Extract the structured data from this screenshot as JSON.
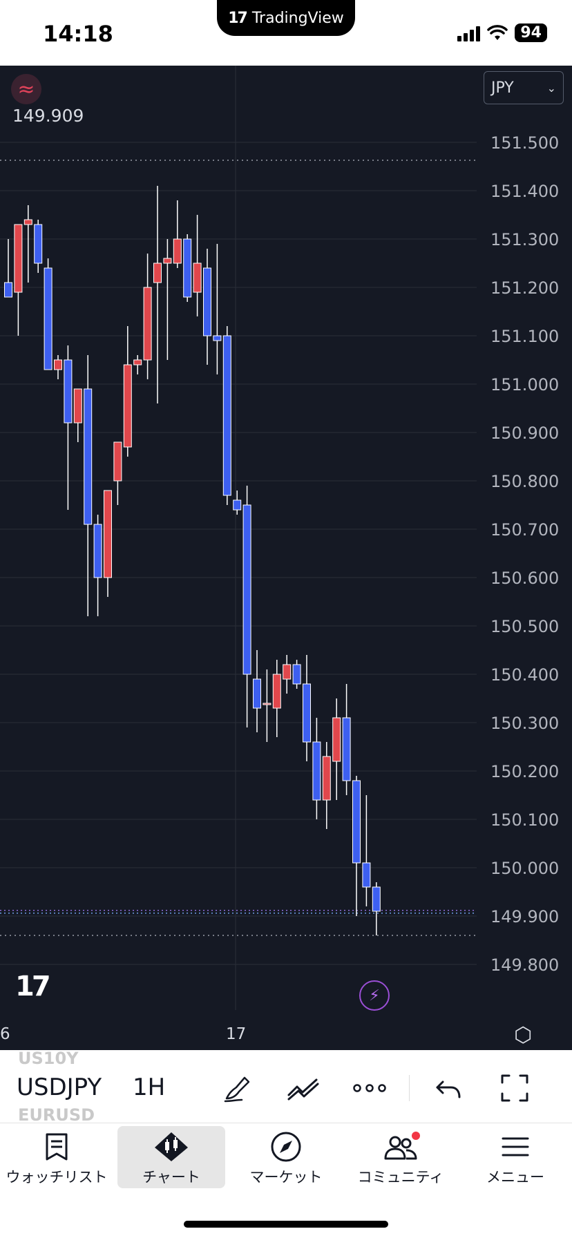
{
  "status": {
    "time": "14:18",
    "battery": "94",
    "island_label": "TradingView"
  },
  "chart": {
    "indicator_value": "149.909",
    "currency": "JPY",
    "price_labels": [
      "151.500",
      "151.400",
      "151.300",
      "151.200",
      "151.100",
      "151.000",
      "150.900",
      "150.800",
      "150.700",
      "150.600",
      "150.500",
      "150.400",
      "150.300",
      "150.200",
      "150.100",
      "150.000",
      "149.900",
      "149.800"
    ],
    "time_labels": [
      {
        "label": "6",
        "pos": "edge"
      },
      {
        "label": "17",
        "pos": "mid"
      }
    ],
    "colors": {
      "up": "#e0474c",
      "down": "#3d5ff0",
      "background": "#151924",
      "grid": "#2a2e39"
    },
    "candles": [
      {
        "o": 151.21,
        "h": 151.3,
        "l": 151.19,
        "c": 151.18
      },
      {
        "o": 151.19,
        "h": 151.33,
        "l": 151.1,
        "c": 151.33
      },
      {
        "o": 151.33,
        "h": 151.37,
        "l": 151.21,
        "c": 151.34
      },
      {
        "o": 151.33,
        "h": 151.34,
        "l": 151.23,
        "c": 151.25
      },
      {
        "o": 151.24,
        "h": 151.26,
        "l": 151.03,
        "c": 151.03
      },
      {
        "o": 151.03,
        "h": 151.06,
        "l": 151.01,
        "c": 151.05
      },
      {
        "o": 151.05,
        "h": 151.08,
        "l": 150.74,
        "c": 150.92
      },
      {
        "o": 150.92,
        "h": 150.99,
        "l": 150.88,
        "c": 150.99
      },
      {
        "o": 150.99,
        "h": 151.06,
        "l": 150.52,
        "c": 150.71
      },
      {
        "o": 150.71,
        "h": 150.73,
        "l": 150.52,
        "c": 150.6
      },
      {
        "o": 150.6,
        "h": 150.78,
        "l": 150.56,
        "c": 150.78
      },
      {
        "o": 150.8,
        "h": 150.88,
        "l": 150.75,
        "c": 150.88
      },
      {
        "o": 150.87,
        "h": 151.12,
        "l": 150.85,
        "c": 151.04
      },
      {
        "o": 151.04,
        "h": 151.06,
        "l": 151.02,
        "c": 151.05
      },
      {
        "o": 151.05,
        "h": 151.27,
        "l": 151.01,
        "c": 151.2
      },
      {
        "o": 151.21,
        "h": 151.41,
        "l": 150.96,
        "c": 151.25
      },
      {
        "o": 151.25,
        "h": 151.3,
        "l": 151.05,
        "c": 151.26
      },
      {
        "o": 151.25,
        "h": 151.38,
        "l": 151.24,
        "c": 151.3
      },
      {
        "o": 151.3,
        "h": 151.31,
        "l": 151.17,
        "c": 151.18
      },
      {
        "o": 151.19,
        "h": 151.35,
        "l": 151.14,
        "c": 151.25
      },
      {
        "o": 151.24,
        "h": 151.28,
        "l": 151.04,
        "c": 151.1
      },
      {
        "o": 151.1,
        "h": 151.29,
        "l": 151.02,
        "c": 151.09
      },
      {
        "o": 151.1,
        "h": 151.12,
        "l": 150.75,
        "c": 150.77
      },
      {
        "o": 150.76,
        "h": 150.78,
        "l": 150.73,
        "c": 150.74
      },
      {
        "o": 150.75,
        "h": 150.79,
        "l": 150.29,
        "c": 150.4
      },
      {
        "o": 150.39,
        "h": 150.45,
        "l": 150.28,
        "c": 150.33
      },
      {
        "o": 150.34,
        "h": 150.41,
        "l": 150.26,
        "c": 150.34
      },
      {
        "o": 150.33,
        "h": 150.43,
        "l": 150.27,
        "c": 150.4
      },
      {
        "o": 150.39,
        "h": 150.44,
        "l": 150.36,
        "c": 150.42
      },
      {
        "o": 150.42,
        "h": 150.43,
        "l": 150.37,
        "c": 150.38
      },
      {
        "o": 150.38,
        "h": 150.44,
        "l": 150.22,
        "c": 150.26
      },
      {
        "o": 150.26,
        "h": 150.31,
        "l": 150.1,
        "c": 150.14
      },
      {
        "o": 150.14,
        "h": 150.26,
        "l": 150.08,
        "c": 150.23
      },
      {
        "o": 150.22,
        "h": 150.35,
        "l": 150.14,
        "c": 150.31
      },
      {
        "o": 150.31,
        "h": 150.38,
        "l": 150.15,
        "c": 150.18
      },
      {
        "o": 150.18,
        "h": 150.19,
        "l": 149.9,
        "c": 150.01
      },
      {
        "o": 150.01,
        "h": 150.15,
        "l": 149.92,
        "c": 149.96
      },
      {
        "o": 149.96,
        "h": 149.97,
        "l": 149.86,
        "c": 149.91
      }
    ]
  },
  "toolbar": {
    "symbol": "USDJPY",
    "interval": "1H",
    "ghost_above": "US10Y",
    "ghost_below": "EURUSD",
    "tools": [
      "brush-icon",
      "trend-line-icon",
      "more-dots-icon",
      "undo-icon",
      "fullscreen-icon"
    ]
  },
  "nav": {
    "items": [
      {
        "label": "ウォッチリスト",
        "icon": "watchlist-bookmark-icon"
      },
      {
        "label": "チャート",
        "icon": "chart-candles-icon",
        "active": true
      },
      {
        "label": "マーケット",
        "icon": "compass-icon"
      },
      {
        "label": "コミュニティ",
        "icon": "community-people-icon",
        "badge": true
      },
      {
        "label": "メニュー",
        "icon": "hamburger-menu-icon"
      }
    ]
  }
}
